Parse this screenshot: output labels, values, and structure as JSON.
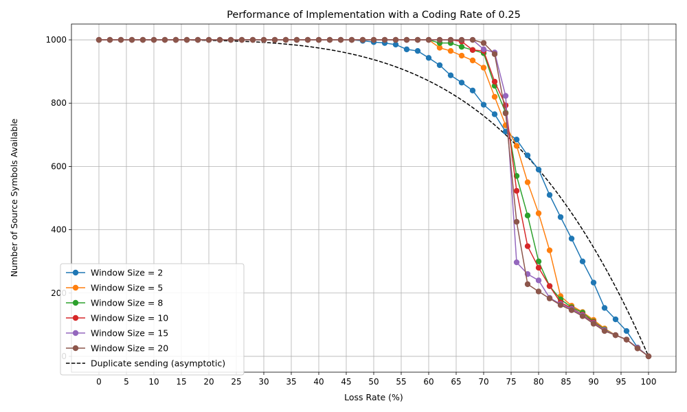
{
  "chart_data": {
    "type": "line",
    "title": "Performance of Implementation with a Coding Rate of 0.25",
    "xlabel": "Loss Rate (%)",
    "ylabel": "Number of Source Symbols Available",
    "xlim": [
      -5,
      105
    ],
    "ylim": [
      -50,
      1050
    ],
    "xticks": [
      0,
      5,
      10,
      15,
      20,
      25,
      30,
      35,
      40,
      45,
      50,
      55,
      60,
      65,
      70,
      75,
      80,
      85,
      90,
      95,
      100
    ],
    "yticks": [
      0,
      200,
      400,
      600,
      800,
      1000
    ],
    "grid": true,
    "legend_position": "lower-left",
    "x": [
      0,
      2,
      4,
      6,
      8,
      10,
      12,
      14,
      16,
      18,
      20,
      22,
      24,
      26,
      28,
      30,
      32,
      34,
      36,
      38,
      40,
      42,
      44,
      46,
      48,
      50,
      52,
      54,
      56,
      58,
      60,
      62,
      64,
      66,
      68,
      70,
      72,
      74,
      76,
      78,
      80,
      82,
      84,
      86,
      88,
      90,
      92,
      94,
      96,
      98,
      100
    ],
    "series": [
      {
        "name": "Window Size = 2",
        "color": "#1f77b4",
        "values": [
          1000,
          1000,
          1000,
          1000,
          1000,
          1000,
          1000,
          1000,
          1000,
          1000,
          1000,
          1000,
          1000,
          1000,
          1000,
          1000,
          1000,
          1000,
          1000,
          1000,
          1000,
          1000,
          1000,
          1000,
          997,
          993,
          990,
          985,
          970,
          965,
          943,
          920,
          888,
          865,
          840,
          795,
          765,
          710,
          685,
          635,
          590,
          510,
          440,
          372,
          300,
          233,
          153,
          117,
          80,
          28,
          0
        ]
      },
      {
        "name": "Window Size = 5",
        "color": "#ff7f0e",
        "values": [
          1000,
          1000,
          1000,
          1000,
          1000,
          1000,
          1000,
          1000,
          1000,
          1000,
          1000,
          1000,
          1000,
          1000,
          1000,
          1000,
          1000,
          1000,
          1000,
          1000,
          1000,
          1000,
          1000,
          1000,
          1000,
          1000,
          1000,
          1000,
          1000,
          1000,
          1000,
          975,
          965,
          950,
          935,
          912,
          820,
          730,
          665,
          550,
          452,
          335,
          190,
          160,
          140,
          115,
          88,
          67,
          53,
          27,
          0
        ]
      },
      {
        "name": "Window Size = 8",
        "color": "#2ca02c",
        "values": [
          1000,
          1000,
          1000,
          1000,
          1000,
          1000,
          1000,
          1000,
          1000,
          1000,
          1000,
          1000,
          1000,
          1000,
          1000,
          1000,
          1000,
          1000,
          1000,
          1000,
          1000,
          1000,
          1000,
          1000,
          1000,
          1000,
          1000,
          1000,
          1000,
          1000,
          1000,
          990,
          990,
          978,
          968,
          958,
          855,
          770,
          570,
          445,
          300,
          222,
          180,
          155,
          138,
          110,
          85,
          67,
          53,
          27,
          0
        ]
      },
      {
        "name": "Window Size = 10",
        "color": "#d62728",
        "values": [
          1000,
          1000,
          1000,
          1000,
          1000,
          1000,
          1000,
          1000,
          1000,
          1000,
          1000,
          1000,
          1000,
          1000,
          1000,
          1000,
          1000,
          1000,
          1000,
          1000,
          1000,
          1000,
          1000,
          1000,
          1000,
          1000,
          1000,
          1000,
          1000,
          1000,
          1000,
          1000,
          1000,
          995,
          968,
          965,
          868,
          793,
          523,
          348,
          280,
          222,
          170,
          152,
          132,
          108,
          83,
          67,
          53,
          27,
          0
        ]
      },
      {
        "name": "Window Size = 15",
        "color": "#9467bd",
        "values": [
          1000,
          1000,
          1000,
          1000,
          1000,
          1000,
          1000,
          1000,
          1000,
          1000,
          1000,
          1000,
          1000,
          1000,
          1000,
          1000,
          1000,
          1000,
          1000,
          1000,
          1000,
          1000,
          1000,
          1000,
          1000,
          1000,
          1000,
          1000,
          1000,
          1000,
          1000,
          1000,
          1000,
          1000,
          1000,
          970,
          960,
          823,
          297,
          260,
          240,
          185,
          165,
          150,
          130,
          105,
          83,
          67,
          53,
          27,
          0
        ]
      },
      {
        "name": "Window Size = 20",
        "color": "#8c564b",
        "values": [
          1000,
          1000,
          1000,
          1000,
          1000,
          1000,
          1000,
          1000,
          1000,
          1000,
          1000,
          1000,
          1000,
          1000,
          1000,
          1000,
          1000,
          1000,
          1000,
          1000,
          1000,
          1000,
          1000,
          1000,
          1000,
          1000,
          1000,
          1000,
          1000,
          1000,
          1000,
          1000,
          1000,
          1000,
          1000,
          990,
          955,
          768,
          425,
          228,
          205,
          183,
          162,
          146,
          127,
          103,
          80,
          67,
          53,
          25,
          0
        ]
      }
    ],
    "reference_line": {
      "name": "Duplicate sending (asymptotic)",
      "color": "#000000",
      "style": "dashed",
      "formula": "1000 * (1 - (x/100)^4)"
    }
  }
}
